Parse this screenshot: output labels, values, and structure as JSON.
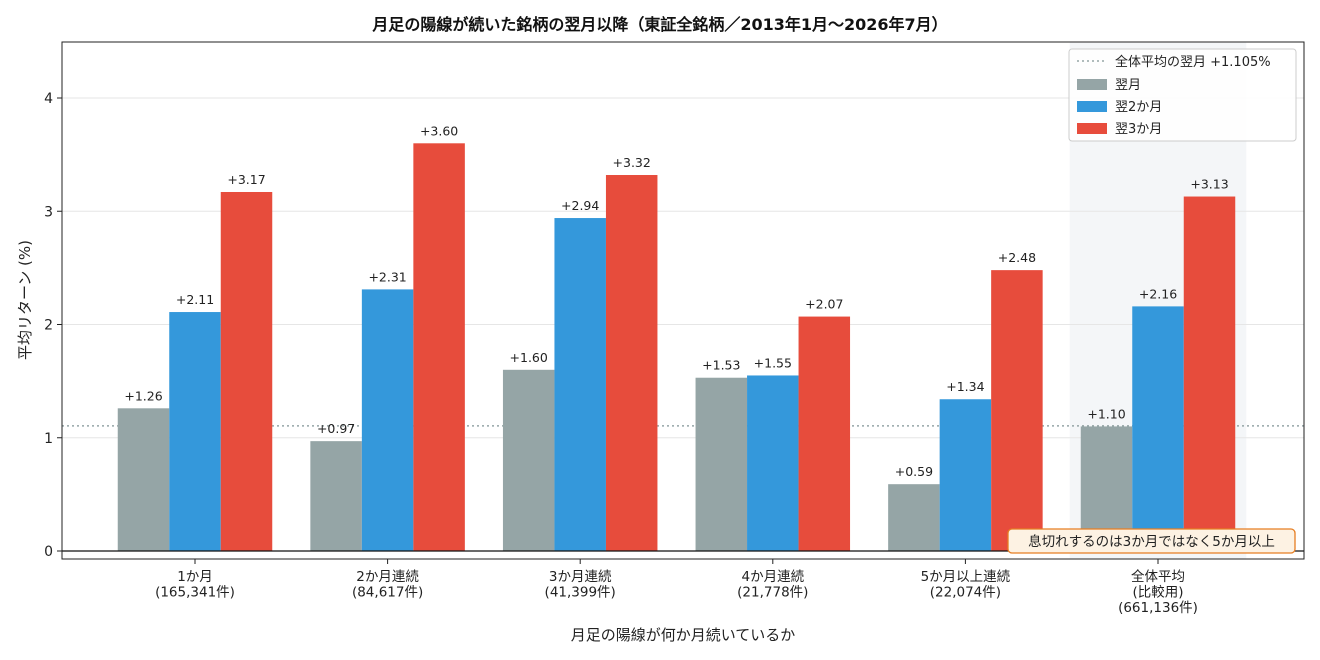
{
  "chart_data": {
    "type": "bar",
    "title": "月足の陽線が続いた銘柄の翌月以降（東証全銘柄／2013年1月〜2026年7月）",
    "xlabel": "月足の陽線が何か月続いているか",
    "ylabel": "平均リターン (%)",
    "ylim": [
      0,
      4.5
    ],
    "yticks": [
      "0",
      "1",
      "2",
      "3",
      "4"
    ],
    "grid": true,
    "legend_position": "top-right",
    "categories": [
      {
        "label": "1か月",
        "sub": "(165,341件)",
        "sub2": ""
      },
      {
        "label": "2か月連続",
        "sub": "(84,617件)",
        "sub2": ""
      },
      {
        "label": "3か月連続",
        "sub": "(41,399件)",
        "sub2": ""
      },
      {
        "label": "4か月連続",
        "sub": "(21,778件)",
        "sub2": ""
      },
      {
        "label": "5か月以上連続",
        "sub": "(22,074件)",
        "sub2": ""
      },
      {
        "label": "全体平均",
        "sub": "(比較用)",
        "sub2": "(661,136件)"
      }
    ],
    "series": [
      {
        "name": "翌月",
        "color": "#95a5a6",
        "values": [
          1.26,
          0.97,
          1.6,
          1.53,
          0.59,
          1.1
        ],
        "labels": [
          "+1.26",
          "+0.97",
          "+1.60",
          "+1.53",
          "+0.59",
          "+1.10"
        ]
      },
      {
        "name": "翌2か月",
        "color": "#3498db",
        "values": [
          2.11,
          2.31,
          2.94,
          1.55,
          1.34,
          2.16
        ],
        "labels": [
          "+2.11",
          "+2.31",
          "+2.94",
          "+1.55",
          "+1.34",
          "+2.16"
        ]
      },
      {
        "name": "翌3か月",
        "color": "#e74c3c",
        "values": [
          3.17,
          3.6,
          3.32,
          2.07,
          2.48,
          3.13
        ],
        "labels": [
          "+3.17",
          "+3.60",
          "+3.32",
          "+2.07",
          "+2.48",
          "+3.13"
        ]
      }
    ],
    "reference_line": {
      "name": "全体平均の翌月 +1.105%",
      "value": 1.105,
      "color": "#95a5a6",
      "style": "dotted"
    },
    "highlight_category_index": 5,
    "highlight_color": "#f4f6f8",
    "annotation": {
      "text": "息切れするのは3か月ではなく5か月以上",
      "border_color": "#e67e22",
      "fill_color": "#fdf2e3"
    }
  }
}
